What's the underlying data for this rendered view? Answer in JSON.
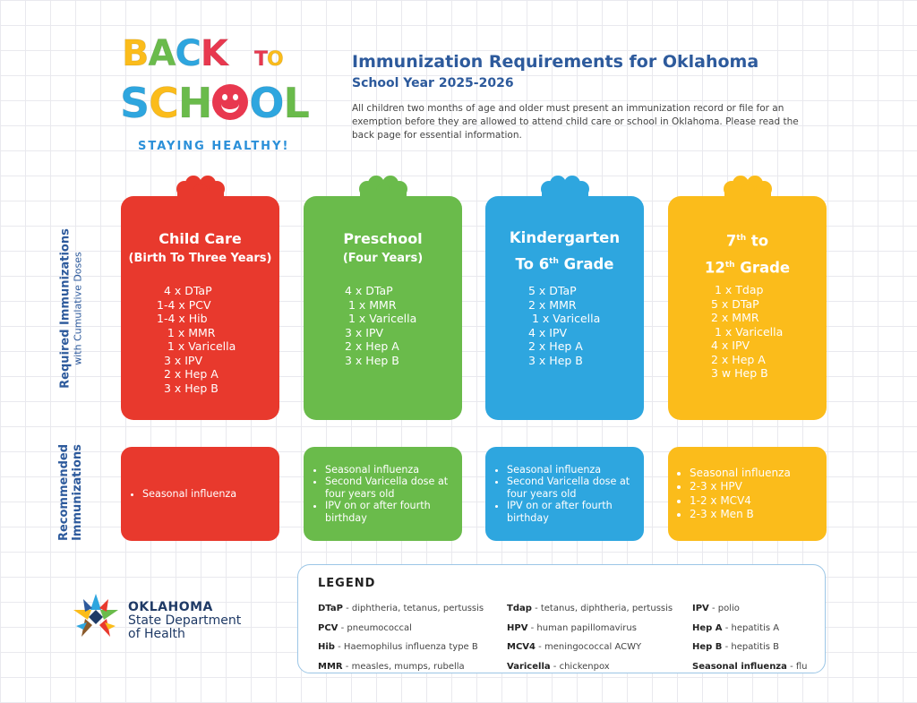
{
  "logo": {
    "line1": [
      "B",
      "A",
      "C",
      "K"
    ],
    "line1_to": [
      "T",
      "O"
    ],
    "line2_left": [
      "S",
      "C",
      "H"
    ],
    "line2_right": [
      "O",
      "L"
    ],
    "tagline": "STAYING HEALTHY!",
    "colors": {
      "b": "#fbbc1b",
      "a": "#6abb4b",
      "c": "#2ea6df",
      "k": "#e8384f",
      "t": "#e8384f",
      "o": "#fbbc1b"
    }
  },
  "header": {
    "title": "Immunization Requirements for Oklahoma",
    "subtitle": "School Year 2025-2026",
    "intro": "All children two months of age and older must present an immunization record or file for an exemption before they are allowed to attend child care or school in Oklahoma. Please read the back page for essential information."
  },
  "side_labels": {
    "required_main": "Required Immunizations",
    "required_sub": "with Cumulative Doses",
    "recommended_line1": "Recommended",
    "recommended_line2": "Immunizations"
  },
  "cards": [
    {
      "title": "Child Care",
      "subtitle": "(Birth To Three Years)",
      "doses": "  4 x DTaP\n1-4 x PCV\n1-4 x Hib\n   1 x MMR\n   1 x Varicella\n  3 x IPV\n  2 x Hep A\n  3 x Hep B",
      "recommended": [
        "Seasonal influenza"
      ],
      "color": "#e8392d"
    },
    {
      "title": "Preschool",
      "subtitle": "(Four Years)",
      "doses": "4 x DTaP\n 1 x MMR\n 1 x Varicella\n3 x IPV\n2 x Hep A\n3 x Hep B",
      "recommended": [
        "Seasonal influenza",
        "Second Varicella dose at four years old",
        "IPV on or after fourth birthday"
      ],
      "color": "#6abb4b"
    },
    {
      "title_line1": "Kindergarten",
      "title_line2_pre": "To 6",
      "title_line2_sup": "th",
      "title_line2_post": " Grade",
      "doses": "5 x DTaP\n2 x MMR\n 1 x Varicella\n4 x IPV\n2 x Hep A\n3 x Hep B",
      "recommended": [
        "Seasonal influenza",
        "Second Varicella dose at four years old",
        "IPV on or after fourth birthday"
      ],
      "color": "#2ea6df"
    },
    {
      "title_line1_pre": "7",
      "title_line1_sup": "th",
      "title_line1_post": " to",
      "title_line2_pre": "12",
      "title_line2_sup": "th",
      "title_line2_post": " Grade",
      "doses": " 1 x Tdap\n5 x DTaP\n2 x MMR\n 1 x Varicella\n4 x IPV\n2 x Hep A\n3 w Hep B",
      "recommended": [
        "Seasonal influenza",
        "2-3 x HPV",
        "1-2 x MCV4",
        "2-3 x Men B"
      ],
      "color": "#fbbc1b"
    }
  ],
  "legend": {
    "title": "LEGEND",
    "col1": [
      {
        "abbr": "DTaP",
        "desc": " - diphtheria, tetanus, pertussis"
      },
      {
        "abbr": "PCV",
        "desc": " - pneumococcal"
      },
      {
        "abbr": "Hib",
        "desc": " - Haemophilus influenza type B"
      },
      {
        "abbr": "MMR",
        "desc": " - measles, mumps, rubella"
      }
    ],
    "col2": [
      {
        "abbr": "Tdap",
        "desc": " - tetanus, diphtheria, pertussis"
      },
      {
        "abbr": "HPV",
        "desc": " - human papillomavirus"
      },
      {
        "abbr": "MCV4",
        "desc": " - meningococcal ACWY"
      },
      {
        "abbr": "Varicella",
        "desc": " - chickenpox"
      }
    ],
    "col3": [
      {
        "abbr": "IPV",
        "desc": " - polio"
      },
      {
        "abbr": "Hep A",
        "desc": " - hepatitis A"
      },
      {
        "abbr": "Hep B",
        "desc": " - hepatitis B"
      },
      {
        "abbr": "Seasonal influenza",
        "desc": " - flu"
      }
    ]
  },
  "agency": {
    "line1": "OKLAHOMA",
    "line2": "State Department",
    "line3": "of Health"
  }
}
